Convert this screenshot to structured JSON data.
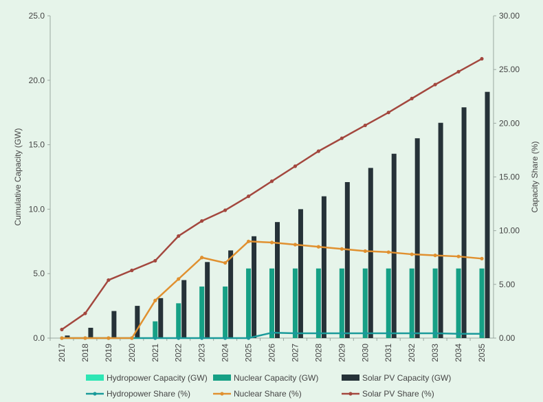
{
  "chart_data": {
    "type": "bar",
    "categories": [
      "2017",
      "2018",
      "2019",
      "2020",
      "2021",
      "2022",
      "2023",
      "2024",
      "2025",
      "2026",
      "2027",
      "2028",
      "2029",
      "2030",
      "2031",
      "2032",
      "2033",
      "2034",
      "2035"
    ],
    "ylabel": "Cumulative Capacity (GW)",
    "y2label": "Capacity Share (%)",
    "ylim": [
      0,
      25
    ],
    "y2lim": [
      0,
      30
    ],
    "yticks": [
      "0.0",
      "5.0",
      "10.0",
      "15.0",
      "20.0",
      "25.0"
    ],
    "y2ticks": [
      "0.00",
      "5.00",
      "10.00",
      "15.00",
      "20.00",
      "25.00",
      "30.00"
    ],
    "grid": false,
    "legend_position": "bottom",
    "bar_series": [
      {
        "name": "Hydropower Capacity (GW)",
        "color": "#2ee6b4",
        "values": [
          0,
          0,
          0,
          0,
          0,
          0,
          0,
          0,
          0,
          0,
          0,
          0,
          0,
          0,
          0,
          0,
          0,
          0,
          0
        ]
      },
      {
        "name": "Nuclear Capacity (GW)",
        "color": "#16a085",
        "values": [
          0,
          0,
          0,
          0,
          1.3,
          2.7,
          4.0,
          4.0,
          5.4,
          5.4,
          5.4,
          5.4,
          5.4,
          5.4,
          5.4,
          5.4,
          5.4,
          5.4,
          5.4
        ]
      },
      {
        "name": "Solar PV Capacity (GW)",
        "color": "#263238",
        "values": [
          0.2,
          0.8,
          2.1,
          2.5,
          3.1,
          4.5,
          5.9,
          6.8,
          7.9,
          9.0,
          10.0,
          11.0,
          12.1,
          13.2,
          14.3,
          15.5,
          16.7,
          17.9,
          19.1
        ]
      }
    ],
    "line_series": [
      {
        "name": "Hydropower Share (%)",
        "color": "#1a9a9a",
        "values": [
          0,
          0,
          0,
          0,
          0,
          0,
          0,
          0,
          0,
          0.5,
          0.45,
          0.45,
          0.45,
          0.45,
          0.45,
          0.45,
          0.45,
          0.4,
          0.4
        ]
      },
      {
        "name": "Nuclear Share (%)",
        "color": "#e0902f",
        "values": [
          0,
          0,
          0,
          0,
          3.5,
          5.5,
          7.5,
          7.0,
          9.0,
          8.9,
          8.7,
          8.5,
          8.3,
          8.1,
          8.0,
          7.8,
          7.7,
          7.6,
          7.4
        ]
      },
      {
        "name": "Solar PV Share (%)",
        "color": "#a3473e",
        "values": [
          0.8,
          2.3,
          5.4,
          6.3,
          7.2,
          9.5,
          10.9,
          11.9,
          13.2,
          14.6,
          16.0,
          17.4,
          18.6,
          19.8,
          21.0,
          22.3,
          23.6,
          24.8,
          26.0
        ]
      }
    ]
  }
}
